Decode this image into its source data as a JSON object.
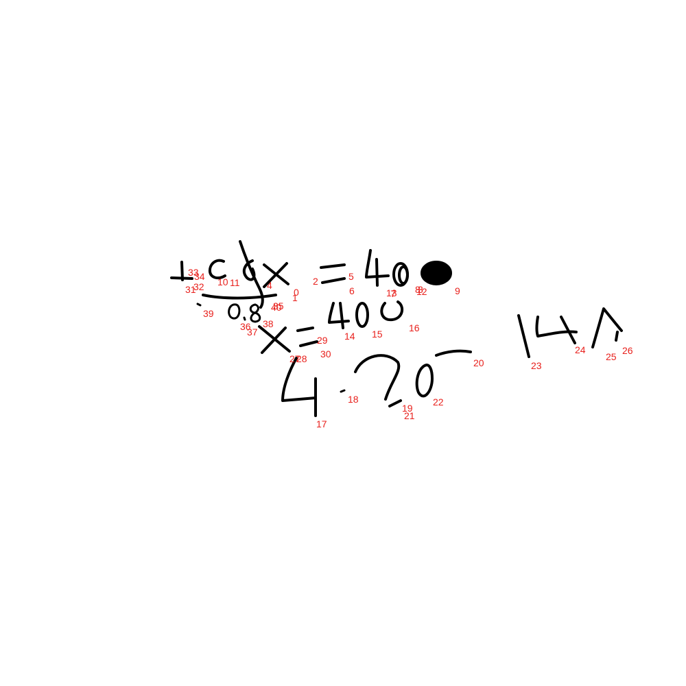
{
  "colors": {
    "ink": "#000000",
    "label": "#e8201c",
    "background": "#ffffff"
  },
  "stroke_labels": [
    "0",
    "1",
    "2",
    "3",
    "4",
    "5",
    "6",
    "7",
    "8",
    "9",
    "10",
    "11",
    "12",
    "13",
    "14",
    "15",
    "16",
    "17",
    "18",
    "19",
    "20",
    "21",
    "22",
    "23",
    "24",
    "25",
    "26",
    "27",
    "28",
    "29",
    "30",
    "31",
    "32",
    "33",
    "34",
    "35",
    "36",
    "37",
    "38",
    "39",
    "40"
  ]
}
